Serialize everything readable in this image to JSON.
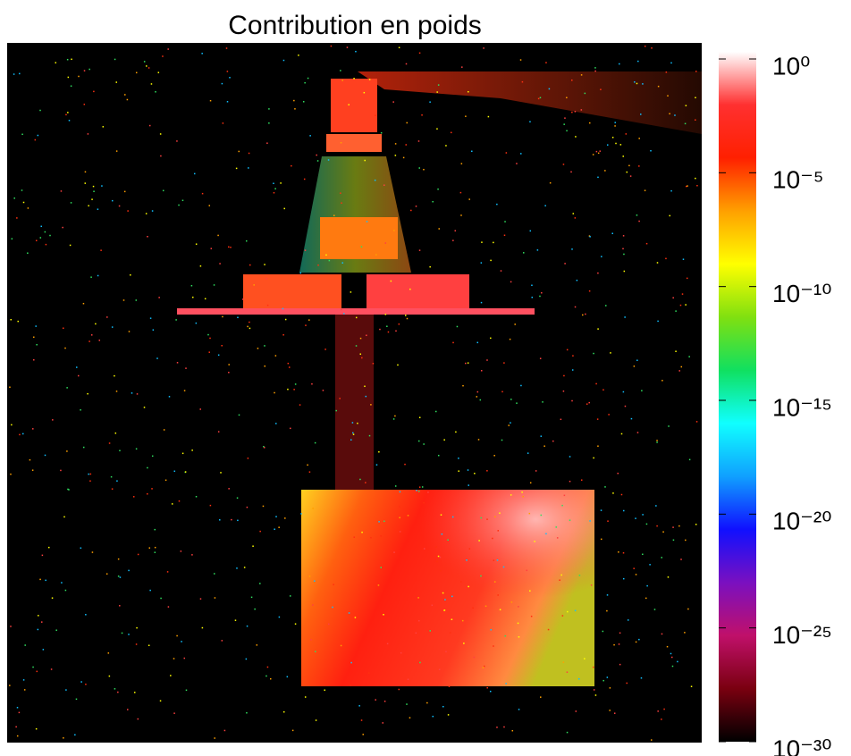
{
  "chart_data": {
    "type": "heatmap",
    "title": "Contribution en poids",
    "colorbar": {
      "scale": "log",
      "lim": [
        1e-30,
        1
      ],
      "ticks": [
        {
          "value": 1,
          "label": "10⁰"
        },
        {
          "value": 1e-05,
          "label": "10⁻⁵"
        },
        {
          "value": 1e-10,
          "label": "10⁻¹⁰"
        },
        {
          "value": 1e-15,
          "label": "10⁻¹⁵"
        },
        {
          "value": 1e-20,
          "label": "10⁻²⁰"
        },
        {
          "value": 1e-25,
          "label": "10⁻²⁵"
        },
        {
          "value": 1e-30,
          "label": "10⁻³⁰"
        }
      ],
      "colormap": [
        "#000000",
        "#7a0010",
        "#c0106a",
        "#7a10c0",
        "#1010ff",
        "#10a0ff",
        "#10ffff",
        "#10e060",
        "#80e010",
        "#ffff00",
        "#ffa000",
        "#ff2000",
        "#ff3030",
        "#ffffff"
      ]
    }
  }
}
